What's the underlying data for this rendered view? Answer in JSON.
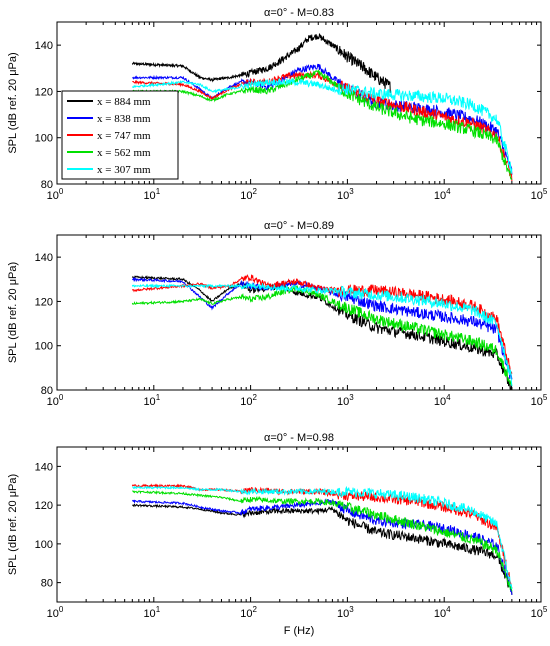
{
  "figure": {
    "xlabel": "F (Hz)",
    "ylabel": "SPL (dB ref. 20 μPa)"
  },
  "legend": {
    "entries": [
      {
        "label": "x = 884 mm",
        "color": "#000000"
      },
      {
        "label": "x = 838 mm",
        "color": "#0000ff"
      },
      {
        "label": "x = 747 mm",
        "color": "#ff0000"
      },
      {
        "label": "x = 562 mm",
        "color": "#00e000"
      },
      {
        "label": "x = 307 mm",
        "color": "#00ffff"
      }
    ]
  },
  "chart_data": [
    {
      "type": "line",
      "title": "α=0° - M=0.83",
      "xscale": "log",
      "xlim": [
        1,
        100000
      ],
      "ylim": [
        80,
        150
      ],
      "yticks": [
        80,
        100,
        120,
        140
      ],
      "xticks": [
        "10^0",
        "10^1",
        "10^2",
        "10^3",
        "10^4",
        "10^5"
      ],
      "grid": false,
      "legend_position": "left",
      "series": [
        {
          "name": "x = 884 mm",
          "color": "#000000",
          "x": [
            6,
            20,
            30,
            40,
            60,
            80,
            100,
            150,
            200,
            300,
            400,
            500,
            700,
            1000,
            1500,
            2000,
            2800
          ],
          "y": [
            132,
            131,
            126,
            125,
            126,
            127,
            128,
            130,
            133,
            138,
            143,
            144,
            140,
            135,
            130,
            126,
            122
          ]
        },
        {
          "name": "x = 838 mm",
          "color": "#0000ff",
          "x": [
            6,
            20,
            30,
            40,
            60,
            80,
            100,
            150,
            200,
            300,
            500,
            700,
            1000,
            2000,
            5000,
            10000,
            20000,
            35000,
            50000
          ],
          "y": [
            126,
            126,
            121,
            117,
            122,
            124,
            124,
            122,
            124,
            129,
            131,
            126,
            121,
            115,
            113,
            111,
            108,
            103,
            85
          ]
        },
        {
          "name": "x = 747 mm",
          "color": "#ff0000",
          "x": [
            6,
            20,
            30,
            40,
            60,
            80,
            100,
            150,
            200,
            300,
            500,
            700,
            1000,
            2000,
            5000,
            10000,
            20000,
            35000,
            50000
          ],
          "y": [
            124,
            123,
            120,
            117,
            121,
            123,
            124,
            124,
            126,
            127,
            127,
            124,
            121,
            116,
            112,
            109,
            106,
            101,
            83
          ]
        },
        {
          "name": "x = 562 mm",
          "color": "#00e000",
          "x": [
            6,
            20,
            30,
            40,
            60,
            80,
            100,
            150,
            200,
            300,
            500,
            700,
            1000,
            2000,
            5000,
            10000,
            20000,
            35000,
            50000
          ],
          "y": [
            120,
            120,
            118,
            116,
            119,
            120,
            121,
            120,
            122,
            125,
            128,
            124,
            119,
            113,
            108,
            106,
            103,
            99,
            81
          ]
        },
        {
          "name": "x = 307 mm",
          "color": "#00ffff",
          "x": [
            6,
            20,
            30,
            40,
            60,
            80,
            100,
            150,
            200,
            300,
            500,
            700,
            1000,
            2000,
            5000,
            10000,
            20000,
            35000,
            50000
          ],
          "y": [
            122,
            124,
            123,
            120,
            121,
            122,
            123,
            124,
            124,
            124,
            123,
            121,
            121,
            119,
            118,
            117,
            114,
            108,
            86
          ]
        }
      ]
    },
    {
      "type": "line",
      "title": "α=0° - M=0.89",
      "xscale": "log",
      "xlim": [
        1,
        100000
      ],
      "ylim": [
        80,
        150
      ],
      "yticks": [
        80,
        100,
        120,
        140
      ],
      "xticks": [
        "10^0",
        "10^1",
        "10^2",
        "10^3",
        "10^4",
        "10^5"
      ],
      "grid": false,
      "series": [
        {
          "name": "x = 884 mm",
          "color": "#000000",
          "x": [
            6,
            20,
            30,
            40,
            60,
            80,
            100,
            150,
            200,
            300,
            500,
            700,
            1000,
            2000,
            5000,
            10000,
            20000,
            35000,
            50000
          ],
          "y": [
            131,
            130,
            125,
            120,
            126,
            128,
            125,
            126,
            127,
            124,
            122,
            118,
            114,
            108,
            105,
            102,
            99,
            96,
            80
          ]
        },
        {
          "name": "x = 838 mm",
          "color": "#0000ff",
          "x": [
            6,
            20,
            30,
            40,
            60,
            80,
            100,
            150,
            200,
            300,
            500,
            700,
            1000,
            2000,
            5000,
            10000,
            20000,
            35000,
            50000
          ],
          "y": [
            130,
            129,
            122,
            117,
            124,
            128,
            127,
            126,
            127,
            128,
            126,
            124,
            122,
            118,
            115,
            113,
            111,
            107,
            84
          ]
        },
        {
          "name": "x = 747 mm",
          "color": "#ff0000",
          "x": [
            6,
            20,
            30,
            40,
            60,
            80,
            100,
            150,
            200,
            300,
            500,
            700,
            1000,
            2000,
            5000,
            10000,
            20000,
            35000,
            50000
          ],
          "y": [
            125,
            127,
            128,
            126,
            127,
            130,
            131,
            127,
            128,
            129,
            126,
            125,
            125,
            125,
            123,
            121,
            118,
            112,
            86
          ]
        },
        {
          "name": "x = 562 mm",
          "color": "#00e000",
          "x": [
            6,
            20,
            30,
            40,
            60,
            80,
            100,
            150,
            200,
            300,
            500,
            700,
            1000,
            2000,
            5000,
            10000,
            20000,
            35000,
            50000
          ],
          "y": [
            119,
            120,
            121,
            119,
            121,
            122,
            121,
            122,
            124,
            126,
            123,
            120,
            117,
            112,
            108,
            105,
            102,
            98,
            82
          ]
        },
        {
          "name": "x = 307 mm",
          "color": "#00ffff",
          "x": [
            6,
            20,
            30,
            40,
            60,
            80,
            100,
            150,
            200,
            300,
            500,
            700,
            1000,
            2000,
            5000,
            10000,
            20000,
            35000,
            50000
          ],
          "y": [
            127,
            127,
            127,
            127,
            127,
            127,
            127,
            127,
            126,
            126,
            125,
            125,
            124,
            123,
            121,
            119,
            116,
            110,
            84
          ]
        }
      ]
    },
    {
      "type": "line",
      "title": "α=0° - M=0.98",
      "xscale": "log",
      "xlim": [
        1,
        100000
      ],
      "ylim": [
        70,
        150
      ],
      "yticks": [
        80,
        100,
        120,
        140
      ],
      "xticks": [
        "10^0",
        "10^1",
        "10^2",
        "10^3",
        "10^4",
        "10^5"
      ],
      "grid": false,
      "series": [
        {
          "name": "x = 884 mm",
          "color": "#000000",
          "x": [
            6,
            20,
            30,
            50,
            80,
            100,
            200,
            500,
            700,
            1000,
            2000,
            5000,
            10000,
            20000,
            35000,
            50000
          ],
          "y": [
            120,
            119,
            118,
            116,
            115,
            116,
            117,
            117,
            118,
            112,
            106,
            103,
            100,
            97,
            94,
            75
          ]
        },
        {
          "name": "x = 838 mm",
          "color": "#0000ff",
          "x": [
            6,
            20,
            30,
            50,
            80,
            100,
            200,
            500,
            700,
            1000,
            2000,
            5000,
            10000,
            20000,
            35000,
            50000
          ],
          "y": [
            122,
            121,
            119,
            117,
            116,
            118,
            119,
            121,
            122,
            117,
            112,
            110,
            108,
            104,
            99,
            76
          ]
        },
        {
          "name": "x = 747 mm",
          "color": "#ff0000",
          "x": [
            6,
            20,
            30,
            50,
            80,
            100,
            200,
            500,
            700,
            1000,
            2000,
            5000,
            10000,
            20000,
            35000,
            50000
          ],
          "y": [
            130,
            130,
            128,
            128,
            127,
            128,
            127,
            127,
            126,
            125,
            124,
            122,
            119,
            115,
            108,
            78
          ]
        },
        {
          "name": "x = 562 mm",
          "color": "#00e000",
          "x": [
            6,
            20,
            30,
            50,
            80,
            100,
            200,
            500,
            700,
            1000,
            2000,
            5000,
            10000,
            20000,
            35000,
            50000
          ],
          "y": [
            127,
            126,
            125,
            124,
            122,
            123,
            122,
            122,
            121,
            119,
            115,
            110,
            106,
            102,
            97,
            75
          ]
        },
        {
          "name": "x = 307 mm",
          "color": "#00ffff",
          "x": [
            6,
            20,
            30,
            50,
            80,
            100,
            200,
            500,
            700,
            1000,
            2000,
            5000,
            10000,
            20000,
            35000,
            50000
          ],
          "y": [
            129,
            129,
            128,
            128,
            127,
            127,
            127,
            127,
            127,
            127,
            126,
            124,
            121,
            117,
            110,
            76
          ]
        }
      ]
    }
  ]
}
